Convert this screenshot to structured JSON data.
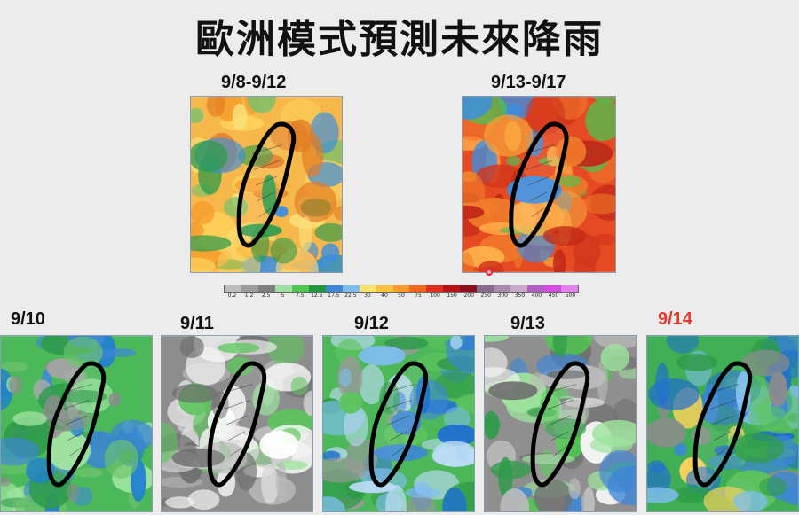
{
  "title": "歐洲模式預測未來降雨",
  "period_maps": [
    {
      "label": "9/8-9/12",
      "palette": "warm"
    },
    {
      "label": "9/13-9/17",
      "palette": "hot"
    }
  ],
  "daily_maps": [
    {
      "label": "9/10",
      "palette": "green",
      "highlight": false
    },
    {
      "label": "9/11",
      "palette": "gray",
      "highlight": false
    },
    {
      "label": "9/12",
      "palette": "bluegreen",
      "highlight": false
    },
    {
      "label": "9/13",
      "palette": "grayish",
      "highlight": false
    },
    {
      "label": "9/14",
      "palette": "wet",
      "highlight": true
    }
  ],
  "colorbar": {
    "ticks": [
      "0.2",
      "1.2",
      "2.5",
      "5",
      "7.5",
      "12.5",
      "17.5",
      "22.5",
      "30",
      "40",
      "50",
      "75",
      "100",
      "150",
      "200",
      "250",
      "300",
      "350",
      "400",
      "450",
      "500"
    ],
    "colors": [
      "#bdbdbd",
      "#9d9d9d",
      "#7f7f7f",
      "#9de39d",
      "#4fc84f",
      "#1f9a3b",
      "#3d86d8",
      "#7fbdf0",
      "#ffe26b",
      "#ffc33d",
      "#ff9a2b",
      "#f5661f",
      "#e0301a",
      "#b51414",
      "#8f0f1f",
      "#8a6a8a",
      "#a98aa9",
      "#c9a9c9",
      "#b65cc9",
      "#d64ce6",
      "#e680f0"
    ]
  },
  "colors": {
    "highlight_label": "#e53b2e"
  }
}
